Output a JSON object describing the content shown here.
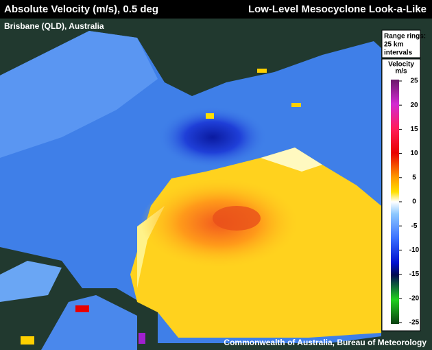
{
  "header": {
    "title": "Absolute Velocity (m/s), 0.5 deg",
    "subtitle": "Low-Level Mesocyclone Look-a-Like"
  },
  "location": "Brisbane (QLD), Australia",
  "range_note": [
    "Range rings:",
    "25 km",
    "intervals"
  ],
  "legend": {
    "title": "Velocity",
    "unit": "m/s",
    "ticks": [
      25,
      20,
      15,
      10,
      5,
      0,
      -5,
      -10,
      -15,
      -20,
      -25
    ]
  },
  "credit": "Commonwealth of Australia, Bureau of Meteorology"
}
